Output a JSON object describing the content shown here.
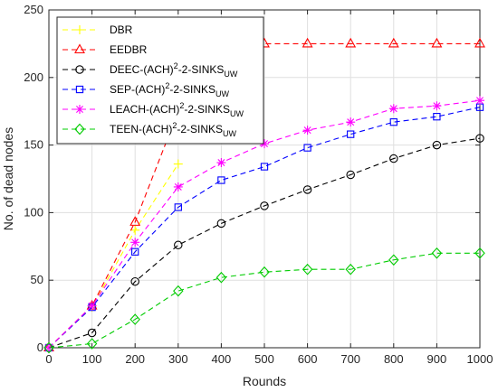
{
  "chart_data": {
    "type": "line",
    "xlabel": "Rounds",
    "ylabel": "No. of dead nodes",
    "xlim": [
      0,
      1000
    ],
    "ylim": [
      0,
      250
    ],
    "xticks": [
      0,
      100,
      200,
      300,
      400,
      500,
      600,
      700,
      800,
      900,
      1000
    ],
    "yticks": [
      0,
      50,
      100,
      150,
      200,
      250
    ],
    "xtick_labels": [
      "0",
      "100",
      "200",
      "300",
      "400",
      "500",
      "600",
      "700",
      "800",
      "900",
      "1000"
    ],
    "ytick_labels": [
      "0",
      "50",
      "100",
      "150",
      "200",
      "250"
    ],
    "grid": true,
    "legend_position": "top-left",
    "series": [
      {
        "name": "DBR",
        "legend": {
          "pre": "DBR",
          "sup": "",
          "mid": "",
          "sub": ""
        },
        "color": "#ffff00",
        "marker": "plus",
        "x": [
          0,
          100,
          200,
          300
        ],
        "y": [
          0,
          30,
          87,
          136
        ]
      },
      {
        "name": "EEDBR",
        "legend": {
          "pre": "EEDBR",
          "sup": "",
          "mid": "",
          "sub": ""
        },
        "color": "#ff0000",
        "marker": "triangle",
        "x": [
          0,
          100,
          200,
          300,
          400,
          500,
          600,
          700,
          800,
          900,
          1000
        ],
        "y": [
          0,
          31,
          93,
          175,
          225,
          225,
          225,
          225,
          225,
          225,
          225
        ]
      },
      {
        "name": "DEEC-(ACH)2-2-SINKSUW",
        "legend": {
          "pre": "DEEC-(ACH)",
          "sup": "2",
          "mid": "-2-SINKS",
          "sub": "UW"
        },
        "color": "#000000",
        "marker": "circle",
        "x": [
          0,
          100,
          200,
          300,
          400,
          500,
          600,
          700,
          800,
          900,
          1000
        ],
        "y": [
          0,
          11,
          49,
          76,
          92,
          105,
          117,
          128,
          140,
          150,
          155
        ]
      },
      {
        "name": "SEP-(ACH)2-2-SINKSUW",
        "legend": {
          "pre": "SEP-(ACH)",
          "sup": "2",
          "mid": "-2-SINKS",
          "sub": "UW"
        },
        "color": "#0000ff",
        "marker": "square",
        "x": [
          0,
          100,
          200,
          300,
          400,
          500,
          600,
          700,
          800,
          900,
          1000
        ],
        "y": [
          0,
          30,
          71,
          104,
          124,
          134,
          148,
          158,
          167,
          171,
          178
        ]
      },
      {
        "name": "LEACH-(ACH)2-2-SINKSUW",
        "legend": {
          "pre": "LEACH-(ACH)",
          "sup": "2",
          "mid": "-2-SINKS",
          "sub": "UW"
        },
        "color": "#ff00ff",
        "marker": "asterisk",
        "x": [
          0,
          100,
          200,
          300,
          400,
          500,
          600,
          700,
          800,
          900,
          1000
        ],
        "y": [
          0,
          31,
          78,
          119,
          137,
          151,
          161,
          167,
          177,
          179,
          183
        ]
      },
      {
        "name": "TEEN-(ACH)2-2-SINKSUW",
        "legend": {
          "pre": "TEEN-(ACH)",
          "sup": "2",
          "mid": "-2-SINKS",
          "sub": "UW"
        },
        "color": "#00cc00",
        "marker": "diamond",
        "x": [
          0,
          100,
          200,
          300,
          400,
          500,
          600,
          700,
          800,
          900,
          1000
        ],
        "y": [
          0,
          3,
          21,
          42,
          52,
          56,
          58,
          58,
          65,
          70,
          70
        ]
      }
    ]
  }
}
